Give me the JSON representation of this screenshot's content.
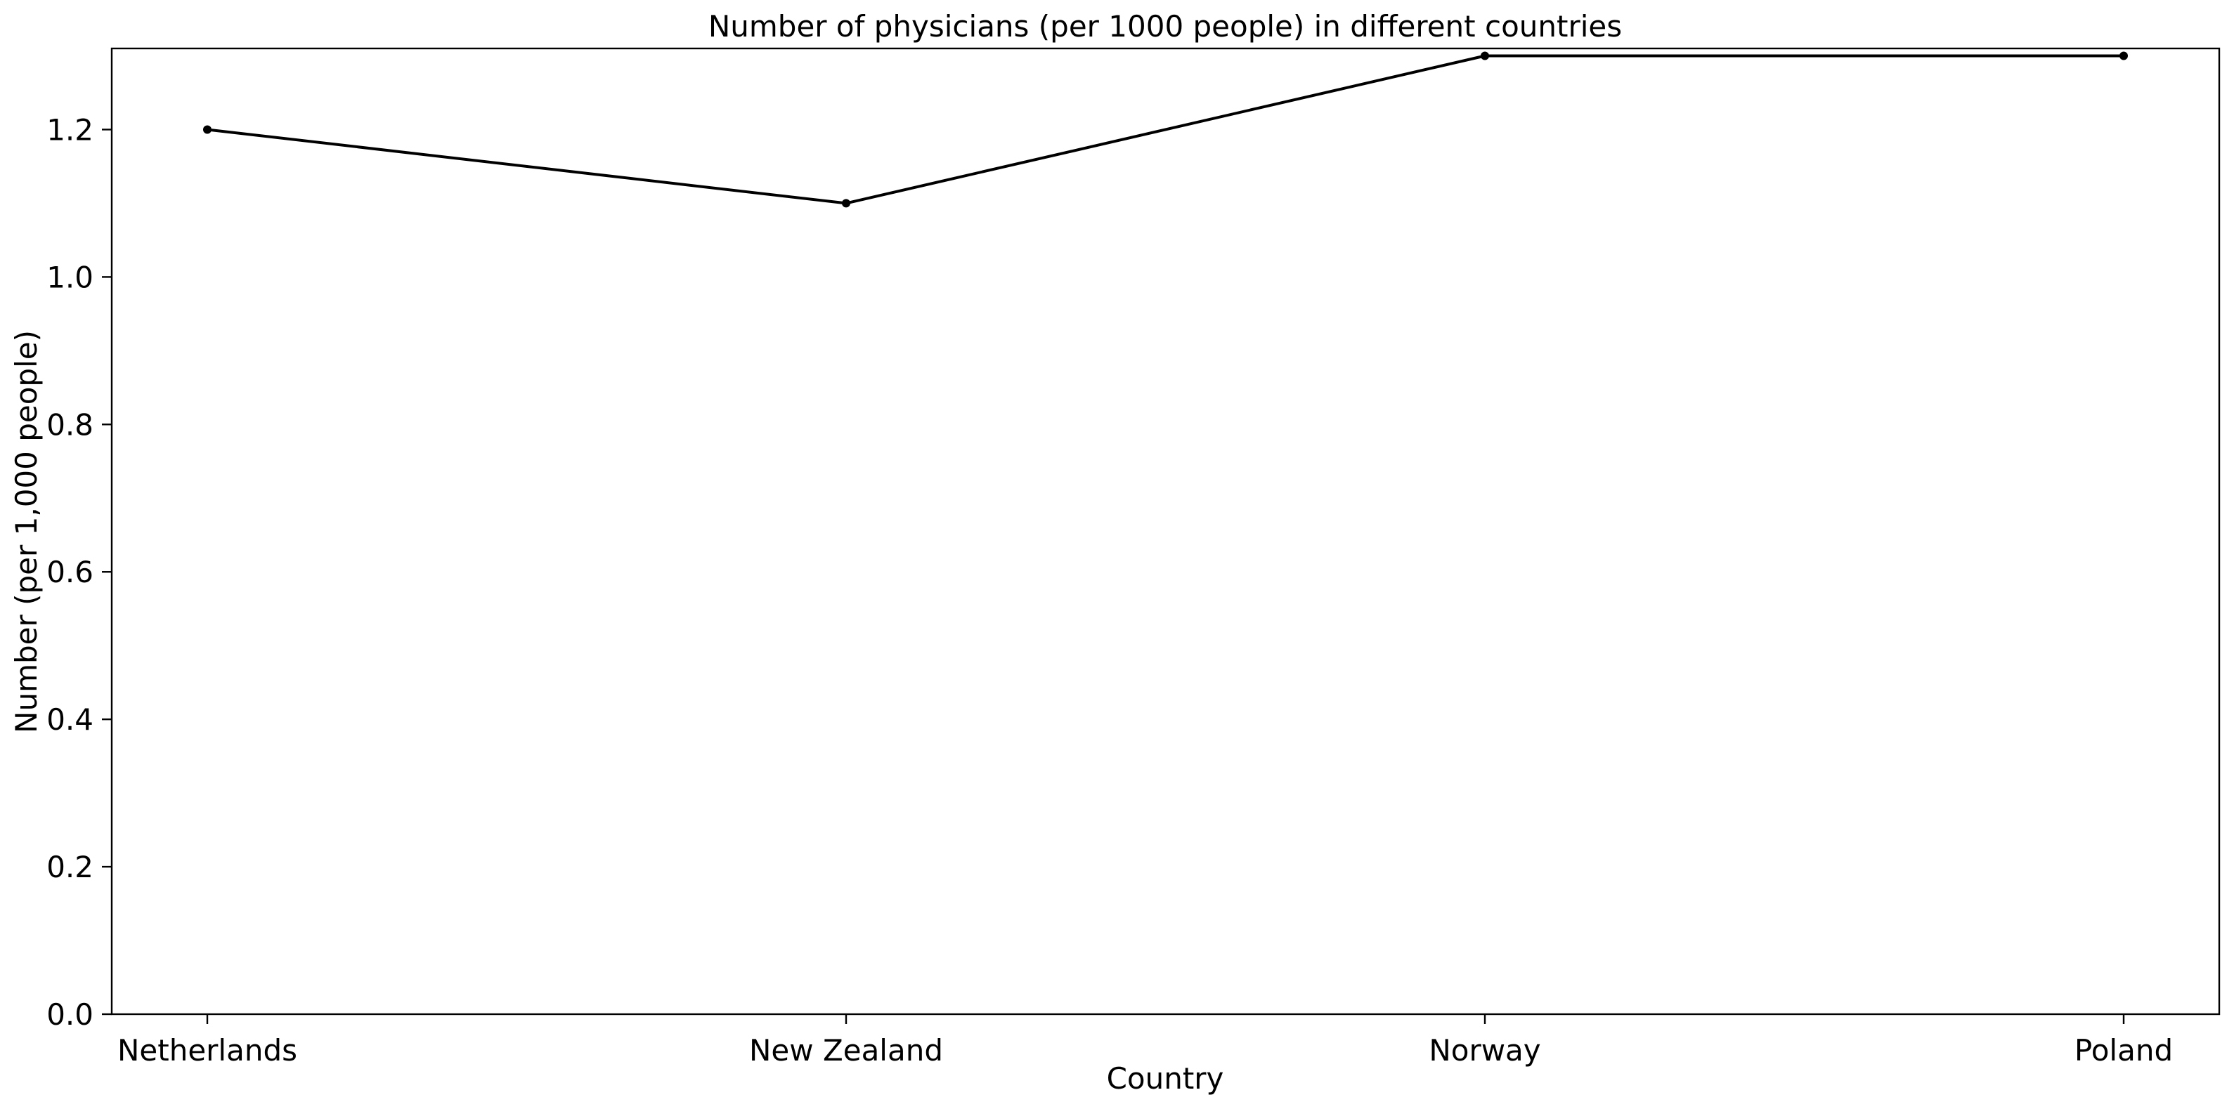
{
  "chart_data": {
    "type": "line",
    "title": "Number of physicians (per 1000 people) in different countries",
    "xlabel": "Country",
    "ylabel": "Number (per 1,000 people)",
    "categories": [
      "Netherlands",
      "New Zealand",
      "Norway",
      "Poland"
    ],
    "series": [
      {
        "values": [
          1.2,
          1.1,
          1.3,
          1.3
        ],
        "color": "#000000",
        "marker": "circle"
      }
    ],
    "ylim": [
      0,
      1.31
    ],
    "yticks": [
      0.0,
      0.2,
      0.4,
      0.6,
      0.8,
      1.0,
      1.2
    ],
    "ytick_labels": [
      "0.0",
      "0.2",
      "0.4",
      "0.6",
      "0.8",
      "1.0",
      "1.2"
    ],
    "grid": false,
    "legend": "none",
    "background": "#ffffff",
    "axis_color": "#000000"
  }
}
